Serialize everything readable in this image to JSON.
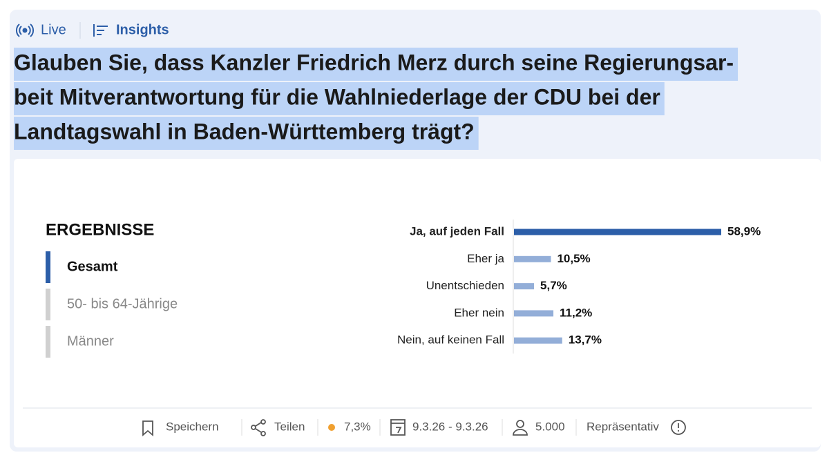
{
  "tabs": [
    "Live",
    "Insights"
  ],
  "title_lines": [
    "Glauben Sie, dass Kanzler Friedrich Merz durch seine Regierungsar-",
    "beit Mitverantwortung für die Wahlniederlage der CDU bei der",
    "Landtagswahl in Baden-Württemberg trägt?"
  ],
  "results_heading": "ERGEBNISSE",
  "filters": [
    "Gesamt",
    "50- bis 64-Jährige",
    "Männer"
  ],
  "chart_data": {
    "type": "hbar",
    "categories": [
      "Ja, auf jeden Fall",
      "Eher ja",
      "Unentschieden",
      "Eher nein",
      "Nein, auf keinen Fall"
    ],
    "values": [
      58.9,
      10.5,
      5.7,
      11.2,
      13.7
    ],
    "value_labels": [
      "58,9%",
      "10,5%",
      "5,7%",
      "11,2%",
      "13,7%"
    ],
    "colors": [
      "#2c5ea8",
      "#93aed8",
      "#93aed8",
      "#93aed8",
      "#93aed8"
    ]
  },
  "footer": {
    "save": "Speichern",
    "share": "Teilen",
    "error": "7,3%",
    "period": "9.3.26 - 9.3.26",
    "sample": "5.000",
    "representative": "Repräsentativ"
  }
}
